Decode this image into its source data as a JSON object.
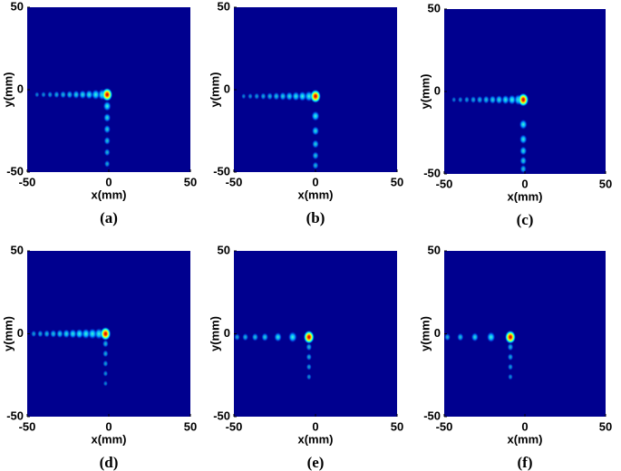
{
  "chart_data": [
    {
      "type": "heatmap",
      "caption": "(a)",
      "xlabel": "x(mm)",
      "ylabel": "y(mm)",
      "xlim": [
        -50,
        50
      ],
      "ylim": [
        -50,
        50
      ],
      "xticks": [
        -50,
        0,
        50
      ],
      "yticks": [
        -50,
        0,
        50
      ],
      "spots_x": [
        -44,
        -40,
        -36,
        -32,
        -28,
        -24,
        -20,
        -16,
        -12,
        -8,
        -4,
        -1,
        -1,
        -1,
        -1,
        -1,
        -1,
        -1
      ],
      "spots_y": [
        -3,
        -3,
        -3,
        -3,
        -3,
        -3,
        -3,
        -3,
        -3,
        -3,
        -3,
        -3,
        -10,
        -17,
        -24,
        -31,
        -38,
        -45
      ],
      "intensity": [
        0.15,
        0.2,
        0.25,
        0.3,
        0.35,
        0.4,
        0.45,
        0.5,
        0.55,
        0.65,
        0.75,
        1,
        0.6,
        0.5,
        0.45,
        0.4,
        0.35,
        0.3
      ]
    },
    {
      "type": "heatmap",
      "caption": "(b)",
      "xlabel": "x(mm)",
      "ylabel": "y(mm)",
      "xlim": [
        -50,
        50
      ],
      "ylim": [
        -50,
        50
      ],
      "xticks": [
        -50,
        0,
        50
      ],
      "yticks": [
        -50,
        0,
        50
      ],
      "spots_x": [
        -44,
        -40,
        -36,
        -32,
        -28,
        -24,
        -20,
        -16,
        -12,
        -8,
        -4,
        0,
        0,
        0,
        0,
        0,
        0
      ],
      "spots_y": [
        -4,
        -4,
        -4,
        -4,
        -4,
        -4,
        -4,
        -4,
        -4,
        -4,
        -4,
        -4,
        -16,
        -25,
        -33,
        -40,
        -46
      ],
      "intensity": [
        0.15,
        0.2,
        0.25,
        0.3,
        0.35,
        0.4,
        0.45,
        0.5,
        0.55,
        0.6,
        0.7,
        1,
        0.6,
        0.5,
        0.45,
        0.4,
        0.35
      ]
    },
    {
      "type": "heatmap",
      "caption": "(c)",
      "xlabel": "x(mm)",
      "ylabel": "y(mm)",
      "xlim": [
        -50,
        50
      ],
      "ylim": [
        -50,
        50
      ],
      "xticks": [
        -50,
        0,
        50
      ],
      "yticks": [
        -50,
        0,
        50
      ],
      "spots_x": [
        -44,
        -40,
        -36,
        -32,
        -28,
        -24,
        -20,
        -16,
        -12,
        -8,
        -4,
        -1,
        -1,
        -1,
        -1,
        -1,
        -1
      ],
      "spots_y": [
        -5,
        -5,
        -5,
        -5,
        -5,
        -5,
        -5,
        -5,
        -5,
        -5,
        -5,
        -5,
        -20,
        -29,
        -36,
        -42,
        -47
      ],
      "intensity": [
        0.15,
        0.2,
        0.25,
        0.3,
        0.35,
        0.4,
        0.45,
        0.5,
        0.55,
        0.6,
        0.7,
        1,
        0.6,
        0.55,
        0.5,
        0.45,
        0.4
      ]
    },
    {
      "type": "heatmap",
      "caption": "(d)",
      "xlabel": "x(mm)",
      "ylabel": "y(mm)",
      "xlim": [
        -50,
        50
      ],
      "ylim": [
        -50,
        50
      ],
      "xticks": [
        -50,
        0,
        50
      ],
      "yticks": [
        -50,
        0,
        50
      ],
      "spots_x": [
        -46,
        -42,
        -38,
        -34,
        -30,
        -26,
        -22,
        -18,
        -14,
        -10,
        -6,
        -2,
        -2,
        -2,
        -2,
        -2,
        -2
      ],
      "spots_y": [
        0,
        0,
        0,
        0,
        0,
        0,
        0,
        0,
        0,
        0,
        0,
        0,
        -6,
        -12,
        -18,
        -24,
        -30
      ],
      "intensity": [
        0.25,
        0.3,
        0.35,
        0.4,
        0.45,
        0.5,
        0.55,
        0.6,
        0.65,
        0.7,
        0.75,
        1,
        0.35,
        0.3,
        0.25,
        0.2,
        0.15
      ]
    },
    {
      "type": "heatmap",
      "caption": "(e)",
      "xlabel": "x(mm)",
      "ylabel": "y(mm)",
      "xlim": [
        -50,
        50
      ],
      "ylim": [
        -50,
        50
      ],
      "xticks": [
        -50,
        0,
        50
      ],
      "yticks": [
        -50,
        0,
        50
      ],
      "spots_x": [
        -48,
        -43,
        -37,
        -31,
        -23,
        -14,
        -4,
        -4,
        -4,
        -4,
        -4
      ],
      "spots_y": [
        -2,
        -2,
        -2,
        -2,
        -2,
        -2,
        -2,
        -8,
        -14,
        -20,
        -26
      ],
      "intensity": [
        0.3,
        0.35,
        0.4,
        0.45,
        0.55,
        0.7,
        1,
        0.35,
        0.3,
        0.25,
        0.2
      ]
    },
    {
      "type": "heatmap",
      "caption": "(f)",
      "xlabel": "x(mm)",
      "ylabel": "y(mm)",
      "xlim": [
        -50,
        50
      ],
      "ylim": [
        -50,
        50
      ],
      "xticks": [
        -50,
        0,
        50
      ],
      "yticks": [
        -50,
        0,
        50
      ],
      "spots_x": [
        -48,
        -40,
        -31,
        -21,
        -9,
        -9,
        -9,
        -9,
        -9
      ],
      "spots_y": [
        -2,
        -2,
        -2,
        -2,
        -2,
        -8,
        -14,
        -20,
        -26
      ],
      "intensity": [
        0.35,
        0.4,
        0.5,
        0.65,
        1,
        0.35,
        0.3,
        0.25,
        0.2
      ]
    }
  ]
}
